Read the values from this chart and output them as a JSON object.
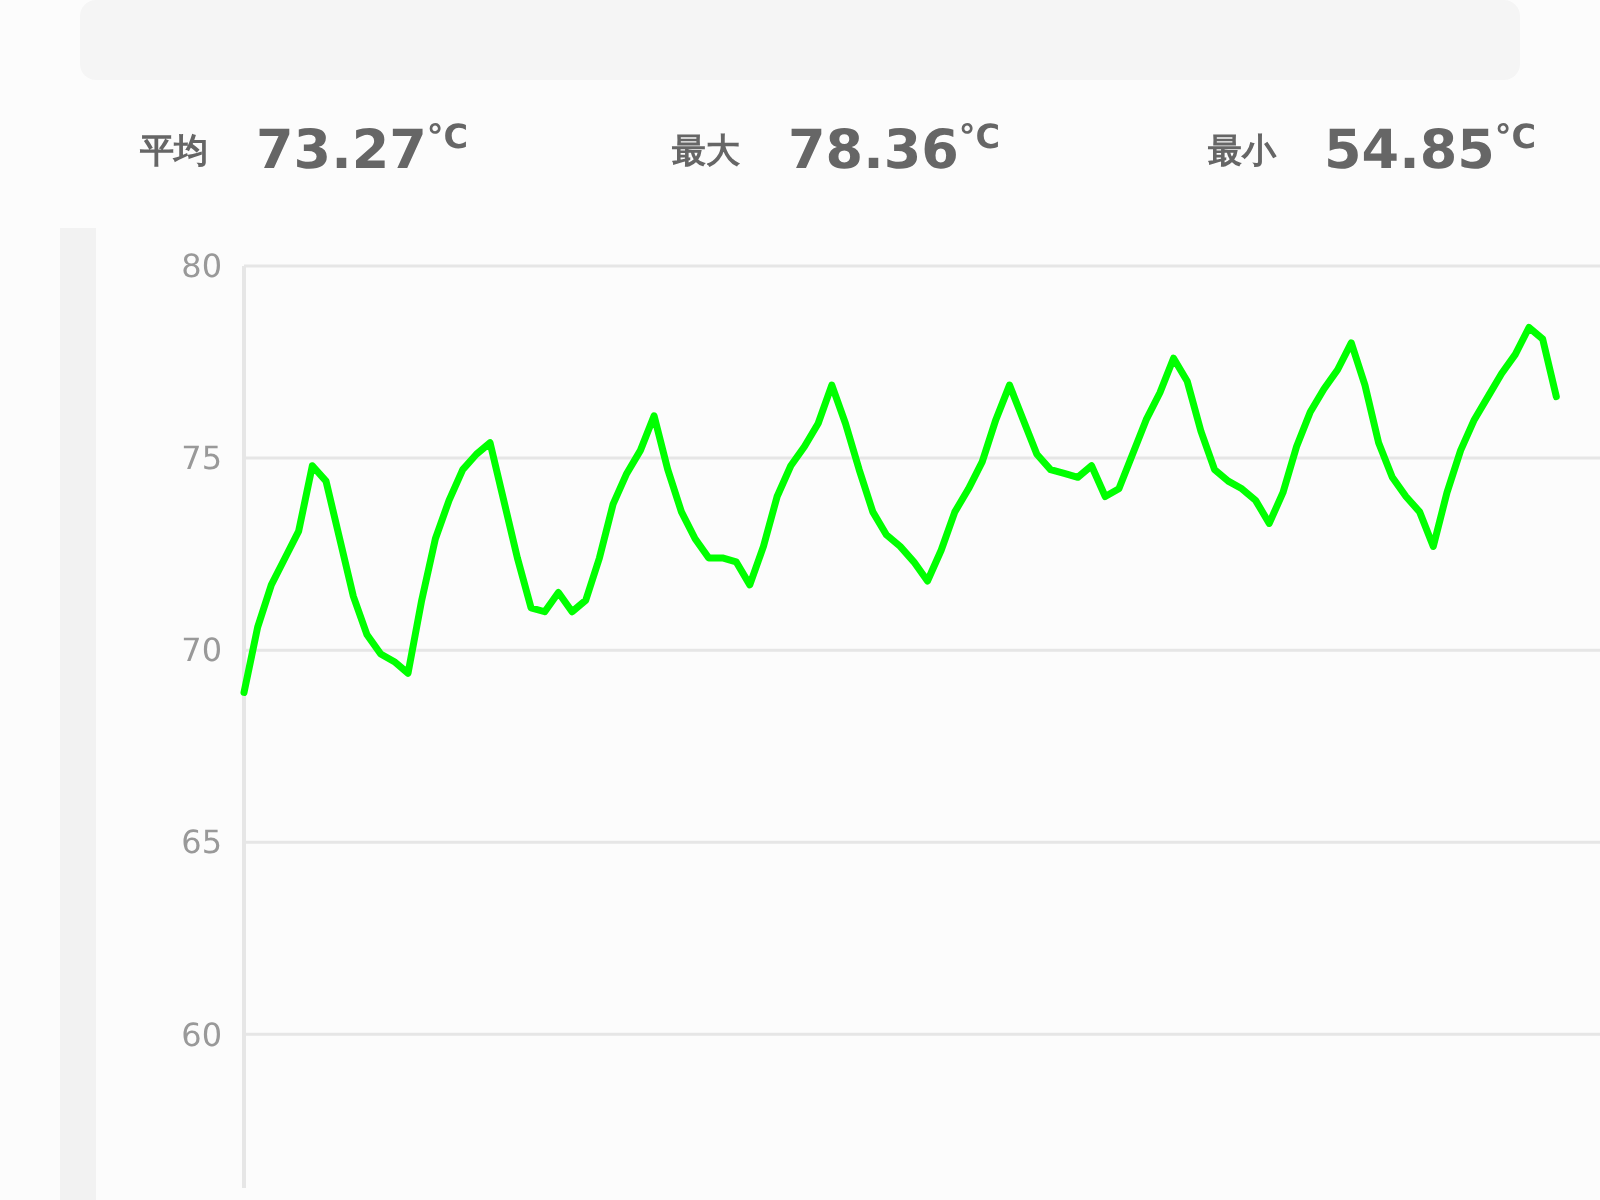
{
  "chart_data": {
    "type": "line",
    "annotations": [
      "平均",
      "73.27$^{°C}$",
      "最大",
      "78.36$^{°C}$",
      "最小",
      "54.85$^{°C}$"
    ],
    "categories": [
      null,
      null,
      null,
      null,
      null,
      null,
      null,
      null,
      null,
      null,
      null,
      null,
      null,
      null,
      null,
      null,
      null,
      null,
      null,
      null,
      null,
      null,
      null,
      null,
      null,
      null,
      null,
      null,
      null,
      null,
      null,
      null,
      null,
      null,
      null,
      null,
      null,
      null,
      null,
      null,
      null,
      null,
      null,
      null,
      null,
      null,
      null,
      null,
      null,
      null,
      null,
      null,
      null,
      null,
      null,
      null,
      null,
      null,
      null,
      null,
      null,
      null,
      null,
      null,
      null,
      null,
      null,
      null,
      null,
      null,
      null,
      null,
      null,
      null,
      null,
      null,
      null,
      null,
      null,
      null,
      null,
      null,
      null,
      null,
      null,
      null,
      null,
      null,
      null,
      null,
      null,
      null,
      null,
      null,
      null,
      null,
      null
    ],
    "series": [
      {
        "color": "#00ff00",
        "values": [
          68.9,
          70.6,
          71.7,
          72.4,
          73.1,
          74.8,
          74.4,
          72.9,
          71.4,
          70.4,
          69.9,
          69.7,
          69.4,
          71.3,
          72.9,
          73.9,
          74.7,
          75.1,
          75.4,
          73.9,
          72.4,
          71.1,
          71.0,
          71.5,
          71.0,
          71.3,
          72.4,
          73.8,
          74.6,
          75.2,
          76.1,
          74.7,
          73.6,
          72.9,
          72.4,
          72.4,
          72.3,
          71.7,
          72.7,
          74.0,
          74.8,
          75.3,
          75.9,
          76.9,
          75.9,
          74.7,
          73.6,
          73.0,
          72.7,
          72.3,
          71.8,
          72.6,
          73.6,
          74.2,
          74.9,
          76.0,
          76.9,
          76.0,
          75.1,
          74.7,
          74.6,
          74.5,
          74.8,
          74.0,
          74.2,
          75.1,
          76.0,
          76.7,
          77.6,
          77.0,
          75.7,
          74.7,
          74.4,
          74.2,
          73.9,
          73.3,
          74.1,
          75.3,
          76.2,
          76.8,
          77.3,
          78.0,
          76.9,
          75.4,
          74.5,
          74.0,
          73.6,
          72.7,
          74.1,
          75.2,
          76.0,
          76.6,
          77.2,
          77.7,
          78.4,
          78.1,
          76.6
        ]
      }
    ],
    "ylim": [
      56,
      80
    ],
    "yticks": [
      60,
      65,
      70,
      75,
      80
    ],
    "tick_labels": "y",
    "grid": "y",
    "marker": "none",
    "line_style": "solid"
  }
}
